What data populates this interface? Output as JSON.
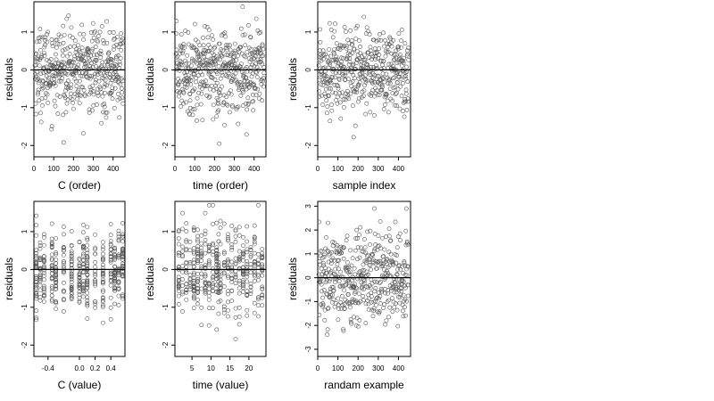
{
  "chart_data": [
    {
      "type": "scatter",
      "xlabel": "C (order)",
      "ylabel": "residuals",
      "xlim": [
        0,
        460
      ],
      "ylim": [
        -2.3,
        1.8
      ],
      "xticks": [
        0,
        100,
        200,
        300,
        400
      ],
      "yticks": [
        -2,
        -1,
        0,
        1
      ],
      "hline": 0,
      "x_kind": "order",
      "n_points": 450,
      "y_spread": 0.55,
      "y_range": [
        -2.15,
        1.7
      ],
      "series": [
        {
          "values": []
        }
      ]
    },
    {
      "type": "scatter",
      "xlabel": "time (order)",
      "ylabel": "residuals",
      "xlim": [
        0,
        460
      ],
      "ylim": [
        -2.3,
        1.8
      ],
      "xticks": [
        0,
        100,
        200,
        300,
        400
      ],
      "yticks": [
        -2,
        -1,
        0,
        1
      ],
      "hline": 0,
      "x_kind": "order",
      "n_points": 450,
      "y_spread": 0.55,
      "y_range": [
        -2.15,
        1.7
      ],
      "series": [
        {
          "values": []
        }
      ]
    },
    {
      "type": "scatter",
      "xlabel": "sample index",
      "ylabel": "residuals",
      "xlim": [
        0,
        460
      ],
      "ylim": [
        -2.3,
        1.8
      ],
      "xticks": [
        0,
        100,
        200,
        300,
        400
      ],
      "yticks": [
        -2,
        -1,
        0,
        1
      ],
      "hline": 0,
      "x_kind": "order",
      "n_points": 450,
      "y_spread": 0.55,
      "y_range": [
        -2.15,
        1.7
      ],
      "series": [
        {
          "values": []
        }
      ]
    },
    {
      "type": "scatter",
      "xlabel": "C (value)",
      "ylabel": "residuals",
      "xlim": [
        -0.58,
        0.58
      ],
      "ylim": [
        -2.3,
        1.8
      ],
      "xticks": [
        -0.4,
        0.0,
        0.2,
        0.4
      ],
      "xtick_labels": [
        "-0.4",
        "0.0",
        "0.2",
        "0.4"
      ],
      "yticks": [
        -2,
        -1,
        0,
        1
      ],
      "hline": 0,
      "x_kind": "discrete",
      "x_levels": [
        -0.55,
        -0.5,
        -0.45,
        -0.35,
        -0.3,
        -0.2,
        -0.1,
        0.0,
        0.05,
        0.1,
        0.2,
        0.3,
        0.4,
        0.45,
        0.5,
        0.55
      ],
      "n_points": 450,
      "y_spread": 0.55,
      "y_range": [
        -2.15,
        1.7
      ],
      "series": [
        {
          "values": []
        }
      ]
    },
    {
      "type": "scatter",
      "xlabel": "time (value)",
      "ylabel": "residuals",
      "xlim": [
        0.5,
        24.5
      ],
      "ylim": [
        -2.3,
        1.8
      ],
      "xticks": [
        5,
        10,
        15,
        20
      ],
      "yticks": [
        -2,
        -1,
        0,
        1
      ],
      "hline": 0,
      "x_kind": "discrete",
      "x_levels": [
        1.5,
        2.5,
        3.5,
        4.5,
        5.5,
        6.5,
        7.5,
        8.5,
        9.5,
        10.5,
        11.5,
        12,
        12.5,
        13.5,
        14.5,
        15.5,
        16.5,
        17.5,
        18.5,
        19.5,
        20.5,
        21.5,
        22.5,
        23.5
      ],
      "n_points": 450,
      "y_spread": 0.55,
      "y_range": [
        -2.15,
        1.7
      ],
      "series": [
        {
          "values": []
        }
      ]
    },
    {
      "type": "scatter",
      "xlabel": "randam example",
      "ylabel": "residuals",
      "xlim": [
        0,
        460
      ],
      "ylim": [
        -3.3,
        3.2
      ],
      "xticks": [
        0,
        100,
        200,
        300,
        400
      ],
      "yticks": [
        -3,
        -2,
        -1,
        0,
        1,
        2,
        3
      ],
      "hline": 0,
      "x_kind": "order",
      "n_points": 450,
      "y_spread": 1.0,
      "y_range": [
        -3.1,
        2.9
      ],
      "series": [
        {
          "values": []
        }
      ]
    }
  ]
}
